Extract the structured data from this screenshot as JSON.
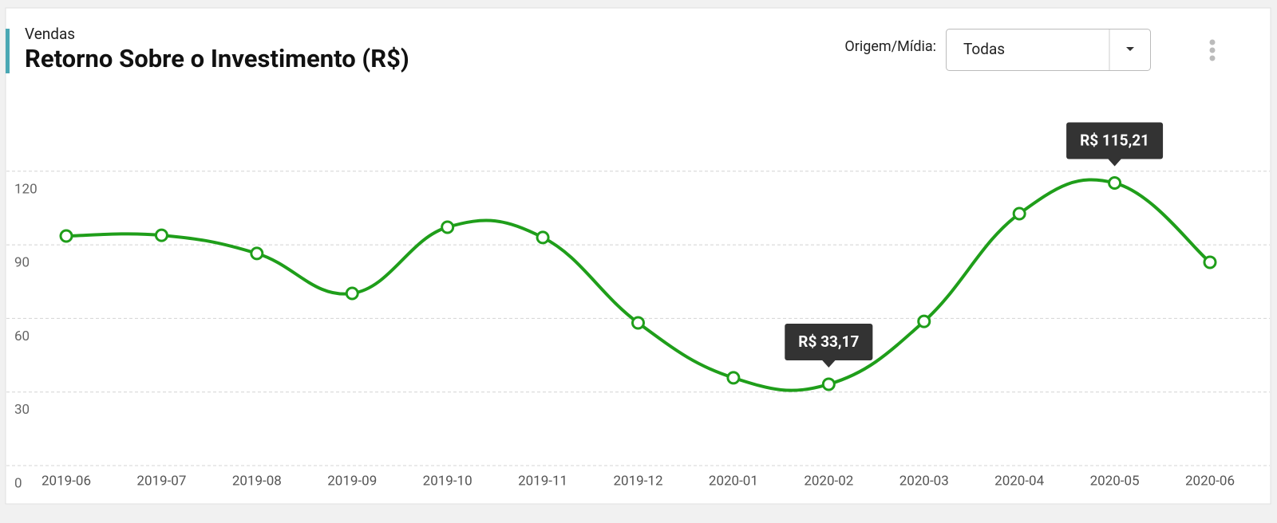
{
  "header": {
    "section": "Vendas",
    "title": "Retorno Sobre o Investimento (R$)"
  },
  "filter": {
    "label": "Origem/Mídia:",
    "value": "Todas"
  },
  "chart_data": {
    "type": "line",
    "categories": [
      "2019-06",
      "2019-07",
      "2019-08",
      "2019-09",
      "2019-10",
      "2019-11",
      "2019-12",
      "2020-01",
      "2020-02",
      "2020-03",
      "2020-04",
      "2020-05",
      "2020-06"
    ],
    "values": [
      93.6,
      93.9,
      86.5,
      70.2,
      97.2,
      93.0,
      58.2,
      35.8,
      33.17,
      58.8,
      102.7,
      115.21,
      82.9
    ],
    "value_labels": [
      null,
      null,
      null,
      null,
      null,
      null,
      null,
      null,
      "R$ 33,17",
      null,
      null,
      "R$ 115,21",
      null
    ],
    "color": "#1f9e1a",
    "ylim": [
      0,
      150
    ],
    "yticks": [
      0,
      30,
      60,
      90,
      120
    ],
    "grid": true
  }
}
